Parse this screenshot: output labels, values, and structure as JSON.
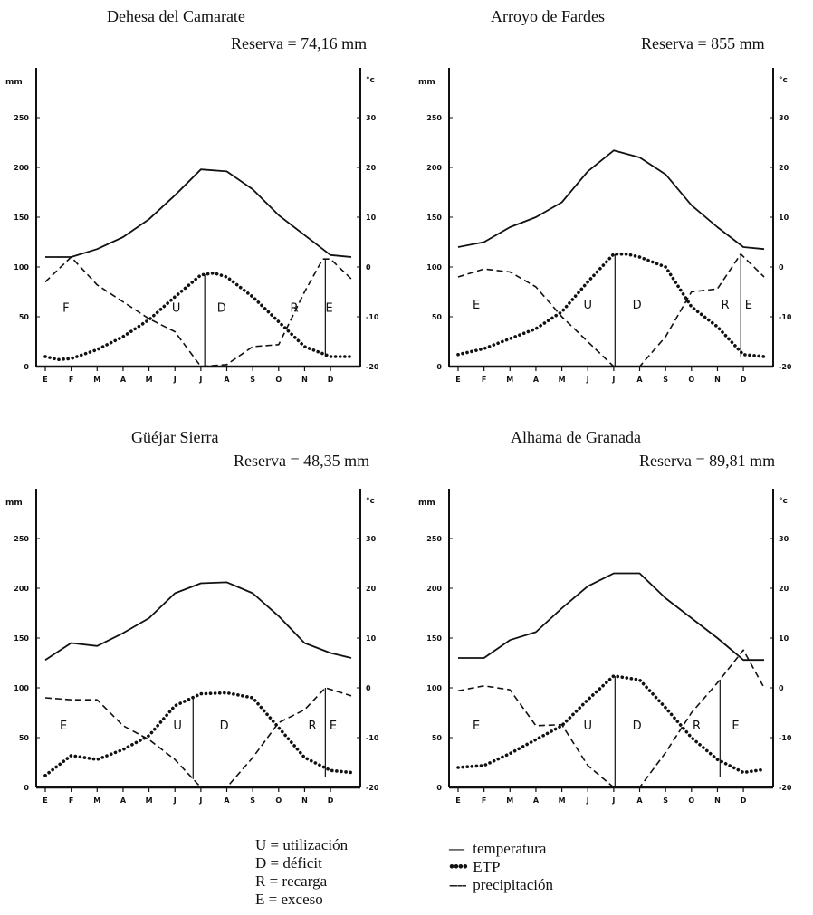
{
  "chart_data": [
    {
      "type": "line",
      "title": "Dehesa del Camarate",
      "subtitle": "Reserva = 74,16 mm",
      "y_left_unit": "mm",
      "y_right_unit": "°c",
      "ylim_left": [
        0,
        300
      ],
      "ylim_right": [
        -20,
        40
      ],
      "y_left_ticks": [
        "250",
        "200",
        "150",
        "100",
        "50",
        "0"
      ],
      "y_right_ticks": [
        "30",
        "20",
        "10",
        "0",
        "-10",
        "-20"
      ],
      "categories": [
        "E",
        "F",
        "M",
        "A",
        "M",
        "J",
        "J",
        "A",
        "S",
        "O",
        "N",
        "D"
      ],
      "zone_labels": [
        {
          "text": "F",
          "x": 1.3,
          "y": 55
        },
        {
          "text": "U",
          "x": 5.55,
          "y": 55
        },
        {
          "text": "D",
          "x": 7.3,
          "y": 55
        },
        {
          "text": "R",
          "x": 10.1,
          "y": 55
        },
        {
          "text": "E",
          "x": 11.45,
          "y": 55
        }
      ],
      "dividers": [
        6.65,
        11.3
      ],
      "series": [
        {
          "name": "temperatura",
          "style": "solid",
          "x": [
            0.5,
            1.5,
            2.5,
            3.5,
            4.5,
            5.5,
            6.5,
            7.5,
            8.5,
            9.5,
            10.5,
            11.5,
            12.3
          ],
          "values": [
            110,
            110,
            118,
            130,
            148,
            172,
            198,
            196,
            178,
            152,
            132,
            112,
            110
          ]
        },
        {
          "name": "ETP",
          "style": "dotted",
          "x": [
            0.5,
            1.0,
            1.5,
            2.5,
            3.5,
            4.5,
            5.5,
            6.5,
            7.0,
            7.5,
            8.5,
            9.5,
            10.5,
            11.5,
            12.3
          ],
          "values": [
            10,
            7,
            8,
            17,
            30,
            47,
            70,
            92,
            94,
            90,
            70,
            45,
            20,
            10,
            10
          ]
        },
        {
          "name": "precipitación",
          "style": "dashed",
          "x": [
            0.5,
            1.5,
            2.5,
            3.5,
            4.5,
            5.5,
            6.5,
            7.5,
            8.5,
            9.5,
            10.5,
            11.2,
            11.5,
            12.3
          ],
          "values": [
            85,
            110,
            82,
            65,
            48,
            35,
            0,
            2,
            20,
            22,
            75,
            108,
            108,
            88
          ]
        }
      ]
    },
    {
      "type": "line",
      "title": "Arroyo de Fardes",
      "subtitle": "Reserva = 855 mm",
      "y_left_unit": "mm",
      "y_right_unit": "°c",
      "ylim_left": [
        0,
        300
      ],
      "ylim_right": [
        -20,
        40
      ],
      "y_left_ticks": [
        "250",
        "200",
        "150",
        "100",
        "50",
        "0"
      ],
      "y_right_ticks": [
        "30",
        "20",
        "10",
        "0",
        "-10",
        "-20"
      ],
      "categories": [
        "E",
        "F",
        "M",
        "A",
        "M",
        "J",
        "J",
        "A",
        "S",
        "O",
        "N",
        "D"
      ],
      "zone_labels": [
        {
          "text": "E",
          "x": 1.2,
          "y": 58
        },
        {
          "text": "U",
          "x": 5.5,
          "y": 58
        },
        {
          "text": "D",
          "x": 7.4,
          "y": 58
        },
        {
          "text": "R",
          "x": 10.8,
          "y": 58
        },
        {
          "text": "E",
          "x": 11.7,
          "y": 58
        }
      ],
      "dividers": [
        6.55,
        11.4
      ],
      "series": [
        {
          "name": "temperatura",
          "style": "solid",
          "x": [
            0.5,
            1.5,
            2.5,
            3.5,
            4.5,
            5.5,
            6.5,
            7.5,
            8.5,
            9.5,
            10.5,
            11.5,
            12.3
          ],
          "values": [
            120,
            125,
            140,
            150,
            165,
            196,
            217,
            210,
            193,
            162,
            140,
            120,
            118
          ]
        },
        {
          "name": "ETP",
          "style": "dotted",
          "x": [
            0.5,
            1.5,
            2.5,
            3.5,
            4.5,
            5.5,
            6.5,
            7.0,
            7.5,
            8.5,
            9.5,
            10.5,
            11.5,
            12.3
          ],
          "values": [
            12,
            18,
            28,
            38,
            55,
            85,
            113,
            113,
            110,
            100,
            60,
            40,
            12,
            10
          ]
        },
        {
          "name": "precipitación",
          "style": "dashed",
          "x": [
            0.5,
            1.5,
            2.5,
            3.5,
            4.5,
            5.5,
            6.5,
            7.5,
            8.5,
            9.5,
            10.5,
            11.4,
            12.3
          ],
          "values": [
            90,
            98,
            95,
            80,
            50,
            25,
            0,
            0,
            30,
            75,
            78,
            113,
            90
          ]
        }
      ]
    },
    {
      "type": "line",
      "title": "Güéjar Sierra",
      "subtitle": "Reserva = 48,35 mm",
      "y_left_unit": "mm",
      "y_right_unit": "°c",
      "ylim_left": [
        0,
        300
      ],
      "ylim_right": [
        -20,
        40
      ],
      "y_left_ticks": [
        "250",
        "200",
        "150",
        "100",
        "50",
        "0"
      ],
      "y_right_ticks": [
        "30",
        "20",
        "10",
        "0",
        "-10",
        "-20"
      ],
      "categories": [
        "E",
        "F",
        "M",
        "A",
        "M",
        "J",
        "J",
        "A",
        "S",
        "O",
        "N",
        "D"
      ],
      "zone_labels": [
        {
          "text": "E",
          "x": 1.2,
          "y": 58
        },
        {
          "text": "U",
          "x": 5.6,
          "y": 58
        },
        {
          "text": "D",
          "x": 7.4,
          "y": 58
        },
        {
          "text": "R",
          "x": 10.8,
          "y": 58
        },
        {
          "text": "E",
          "x": 11.6,
          "y": 58
        }
      ],
      "dividers": [
        6.2,
        11.3
      ],
      "series": [
        {
          "name": "temperatura",
          "style": "solid",
          "x": [
            0.5,
            1.5,
            2.5,
            3.5,
            4.5,
            5.5,
            6.5,
            7.5,
            8.5,
            9.5,
            10.5,
            11.5,
            12.3
          ],
          "values": [
            128,
            145,
            142,
            155,
            170,
            195,
            205,
            206,
            195,
            172,
            145,
            135,
            130
          ]
        },
        {
          "name": "ETP",
          "style": "dotted",
          "x": [
            0.5,
            1.5,
            2.5,
            3.5,
            4.5,
            5.5,
            6.5,
            7.5,
            8.5,
            9.5,
            10.5,
            11.5,
            12.3
          ],
          "values": [
            12,
            32,
            28,
            38,
            52,
            82,
            94,
            95,
            90,
            60,
            30,
            17,
            15
          ]
        },
        {
          "name": "precipitación",
          "style": "dashed",
          "x": [
            0.5,
            1.5,
            2.5,
            3.5,
            4.5,
            5.5,
            6.5,
            7.5,
            8.5,
            9.5,
            10.5,
            11.3,
            12.3
          ],
          "values": [
            90,
            88,
            88,
            62,
            48,
            28,
            0,
            0,
            30,
            65,
            78,
            100,
            92
          ]
        }
      ]
    },
    {
      "type": "line",
      "title": "Alhama de Granada",
      "subtitle": "Reserva = 89,81 mm",
      "y_left_unit": "mm",
      "y_right_unit": "°c",
      "ylim_left": [
        0,
        300
      ],
      "ylim_right": [
        -20,
        40
      ],
      "y_left_ticks": [
        "250",
        "200",
        "150",
        "100",
        "50",
        "0"
      ],
      "y_right_ticks": [
        "30",
        "20",
        "10",
        "0",
        "-10",
        "-20"
      ],
      "categories": [
        "E",
        "F",
        "M",
        "A",
        "M",
        "J",
        "J",
        "A",
        "S",
        "O",
        "N",
        "D"
      ],
      "zone_labels": [
        {
          "text": "E",
          "x": 1.2,
          "y": 58
        },
        {
          "text": "U",
          "x": 5.5,
          "y": 58
        },
        {
          "text": "D",
          "x": 7.4,
          "y": 58
        },
        {
          "text": "R",
          "x": 9.7,
          "y": 58
        },
        {
          "text": "E",
          "x": 11.2,
          "y": 58
        }
      ],
      "dividers": [
        6.55,
        10.6
      ],
      "series": [
        {
          "name": "temperatura",
          "style": "solid",
          "x": [
            0.5,
            1.5,
            2.5,
            3.5,
            4.5,
            5.5,
            6.5,
            7.5,
            8.5,
            9.5,
            10.5,
            11.5,
            12.3
          ],
          "values": [
            130,
            130,
            148,
            156,
            180,
            202,
            215,
            215,
            190,
            170,
            150,
            128,
            128
          ]
        },
        {
          "name": "ETP",
          "style": "dotted",
          "x": [
            0.5,
            1.5,
            2.5,
            3.5,
            4.5,
            5.5,
            6.5,
            7.5,
            8.5,
            9.5,
            10.5,
            11.5,
            12.3
          ],
          "values": [
            20,
            22,
            34,
            48,
            62,
            88,
            112,
            108,
            80,
            50,
            28,
            15,
            18
          ]
        },
        {
          "name": "precipitación",
          "style": "dashed",
          "x": [
            0.5,
            1.5,
            2.5,
            3.5,
            4.5,
            5.5,
            6.5,
            7.5,
            8.5,
            9.5,
            10.5,
            11.5,
            12.3
          ],
          "values": [
            97,
            102,
            98,
            62,
            63,
            22,
            0,
            0,
            35,
            75,
            105,
            138,
            100
          ]
        }
      ]
    }
  ],
  "legend": {
    "zones": [
      {
        "text": "U = utilización"
      },
      {
        "text": "D = déficit"
      },
      {
        "text": "R = recarga"
      },
      {
        "text": "E = exceso"
      }
    ],
    "lines": [
      {
        "symbol": "—",
        "text": "temperatura"
      },
      {
        "symbol": "••••",
        "text": "ETP"
      },
      {
        "symbol": "----",
        "text": "precipitación"
      }
    ]
  }
}
